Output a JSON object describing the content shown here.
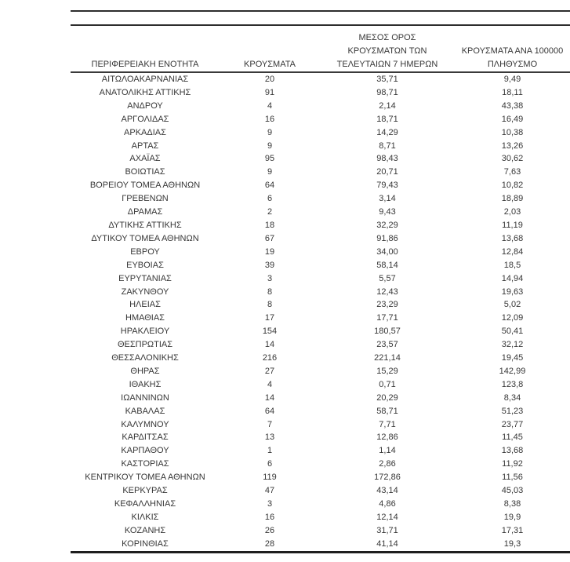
{
  "table": {
    "columns": [
      {
        "id": "region",
        "lines": [
          "ΠΕΡΙΦΕΡΕΙΑΚΗ ΕΝΟΤΗΤΑ"
        ]
      },
      {
        "id": "cases",
        "lines": [
          "ΚΡΟΥΣΜΑΤΑ"
        ]
      },
      {
        "id": "avg7",
        "lines": [
          "ΜΕΣΟΣ ΟΡΟΣ",
          "ΚΡΟΥΣΜΑΤΩΝ ΤΩΝ",
          "ΤΕΛΕΥΤΑΙΩΝ 7 ΗΜΕΡΩΝ"
        ]
      },
      {
        "id": "per100k",
        "lines": [
          "ΚΡΟΥΣΜΑΤΑ ΑΝΑ 100000",
          "ΠΛΗΘΥΣΜΟ"
        ]
      }
    ],
    "cell_names": [
      "region-name",
      "cases-count",
      "avg-7day-cases",
      "cases-per-100k"
    ],
    "rows": [
      [
        "ΑΙΤΩΛΟΑΚΑΡΝΑΝΙΑΣ",
        "20",
        "35,71",
        "9,49"
      ],
      [
        "ΑΝΑΤΟΛΙΚΗΣ ΑΤΤΙΚΗΣ",
        "91",
        "98,71",
        "18,11"
      ],
      [
        "ΑΝΔΡΟΥ",
        "4",
        "2,14",
        "43,38"
      ],
      [
        "ΑΡΓΟΛΙΔΑΣ",
        "16",
        "18,71",
        "16,49"
      ],
      [
        "ΑΡΚΑΔΙΑΣ",
        "9",
        "14,29",
        "10,38"
      ],
      [
        "ΑΡΤΑΣ",
        "9",
        "8,71",
        "13,26"
      ],
      [
        "ΑΧΑΪΑΣ",
        "95",
        "98,43",
        "30,62"
      ],
      [
        "ΒΟΙΩΤΙΑΣ",
        "9",
        "20,71",
        "7,63"
      ],
      [
        "ΒΟΡΕΙΟΥ ΤΟΜΕΑ ΑΘΗΝΩΝ",
        "64",
        "79,43",
        "10,82"
      ],
      [
        "ΓΡΕΒΕΝΩΝ",
        "6",
        "3,14",
        "18,89"
      ],
      [
        "ΔΡΑΜΑΣ",
        "2",
        "9,43",
        "2,03"
      ],
      [
        "ΔΥΤΙΚΗΣ ΑΤΤΙΚΗΣ",
        "18",
        "32,29",
        "11,19"
      ],
      [
        "ΔΥΤΙΚΟΥ ΤΟΜΕΑ ΑΘΗΝΩΝ",
        "67",
        "91,86",
        "13,68"
      ],
      [
        "ΕΒΡΟΥ",
        "19",
        "34,00",
        "12,84"
      ],
      [
        "ΕΥΒΟΙΑΣ",
        "39",
        "58,14",
        "18,5"
      ],
      [
        "ΕΥΡΥΤΑΝΙΑΣ",
        "3",
        "5,57",
        "14,94"
      ],
      [
        "ΖΑΚΥΝΘΟΥ",
        "8",
        "12,43",
        "19,63"
      ],
      [
        "ΗΛΕΙΑΣ",
        "8",
        "23,29",
        "5,02"
      ],
      [
        "ΗΜΑΘΙΑΣ",
        "17",
        "17,71",
        "12,09"
      ],
      [
        "ΗΡΑΚΛΕΙΟΥ",
        "154",
        "180,57",
        "50,41"
      ],
      [
        "ΘΕΣΠΡΩΤΙΑΣ",
        "14",
        "23,57",
        "32,12"
      ],
      [
        "ΘΕΣΣΑΛΟΝΙΚΗΣ",
        "216",
        "221,14",
        "19,45"
      ],
      [
        "ΘΗΡΑΣ",
        "27",
        "15,29",
        "142,99"
      ],
      [
        "ΙΘΑΚΗΣ",
        "4",
        "0,71",
        "123,8"
      ],
      [
        "ΙΩΑΝΝΙΝΩΝ",
        "14",
        "20,29",
        "8,34"
      ],
      [
        "ΚΑΒΑΛΑΣ",
        "64",
        "58,71",
        "51,23"
      ],
      [
        "ΚΑΛΥΜΝΟΥ",
        "7",
        "7,71",
        "23,77"
      ],
      [
        "ΚΑΡΔΙΤΣΑΣ",
        "13",
        "12,86",
        "11,45"
      ],
      [
        "ΚΑΡΠΑΘΟΥ",
        "1",
        "1,14",
        "13,68"
      ],
      [
        "ΚΑΣΤΟΡΙΑΣ",
        "6",
        "2,86",
        "11,92"
      ],
      [
        "ΚΕΝΤΡΙΚΟΥ ΤΟΜΕΑ ΑΘΗΝΩΝ",
        "119",
        "172,86",
        "11,56"
      ],
      [
        "ΚΕΡΚΥΡΑΣ",
        "47",
        "43,14",
        "45,03"
      ],
      [
        "ΚΕΦΑΛΛΗΝΙΑΣ",
        "3",
        "4,86",
        "8,38"
      ],
      [
        "ΚΙΛΚΙΣ",
        "16",
        "12,14",
        "19,9"
      ],
      [
        "ΚΟΖΑΝΗΣ",
        "26",
        "31,71",
        "17,31"
      ],
      [
        "ΚΟΡΙΝΘΙΑΣ",
        "28",
        "41,14",
        "19,3"
      ]
    ],
    "colors": {
      "text": "#373737",
      "rule": "#2d2d2d",
      "background": "#ffffff"
    }
  }
}
